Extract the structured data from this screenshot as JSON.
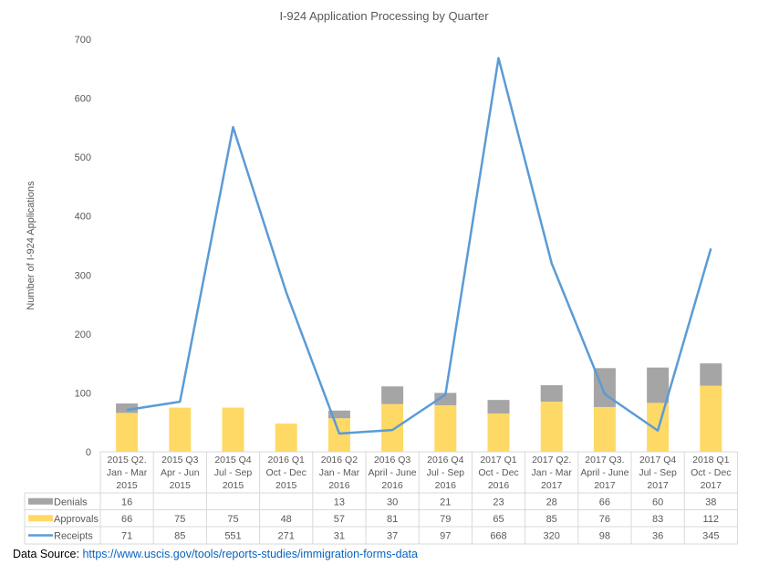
{
  "chart_data": {
    "type": "bar",
    "title": "I-924 Application Processing by Quarter",
    "ylabel": "Number of I-924 Applications",
    "xlabel": "",
    "ylim": [
      0,
      700
    ],
    "yticks": [
      0,
      100,
      200,
      300,
      400,
      500,
      600,
      700
    ],
    "grid": false,
    "legend": "data-table-left",
    "categories": [
      [
        "2015 Q2.",
        "Jan - Mar",
        "2015"
      ],
      [
        "2015 Q3",
        "Apr - Jun",
        "2015"
      ],
      [
        "2015 Q4",
        "Jul - Sep",
        "2015"
      ],
      [
        "2016 Q1",
        "Oct - Dec",
        "2015"
      ],
      [
        "2016 Q2",
        "Jan - Mar",
        "2016"
      ],
      [
        "2016 Q3",
        "April - June",
        "2016"
      ],
      [
        "2016 Q4",
        "Jul - Sep",
        "2016"
      ],
      [
        "2017 Q1",
        "Oct - Dec",
        "2016"
      ],
      [
        "2017 Q2.",
        "Jan - Mar",
        "2017"
      ],
      [
        "2017 Q3.",
        "April - June",
        "2017"
      ],
      [
        "2017 Q4",
        "Jul - Sep",
        "2017"
      ],
      [
        "2018 Q1",
        "Oct - Dec",
        "2017"
      ]
    ],
    "series": [
      {
        "name": "Denials",
        "type": "stacked-bar",
        "color": "#a5a5a5",
        "values": [
          16,
          null,
          null,
          null,
          13,
          30,
          21,
          23,
          28,
          66,
          60,
          38
        ]
      },
      {
        "name": "Approvals",
        "type": "stacked-bar",
        "color": "#ffd966",
        "values": [
          66,
          75,
          75,
          48,
          57,
          81,
          79,
          65,
          85,
          76,
          83,
          112
        ]
      },
      {
        "name": "Receipts",
        "type": "line",
        "color": "#5b9bd5",
        "values": [
          71,
          85,
          551,
          271,
          31,
          37,
          97,
          668,
          320,
          98,
          36,
          345
        ]
      }
    ]
  },
  "source": {
    "label": "Data Source:",
    "url": "https://www.uscis.gov/tools/reports-studies/immigration-forms-data"
  }
}
